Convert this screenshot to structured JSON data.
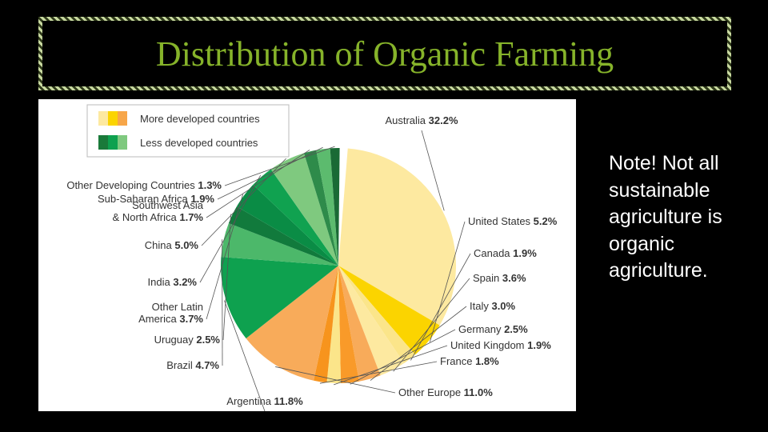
{
  "slide": {
    "title": "Distribution of Organic Farming",
    "note": "Note! Not all sustainable agriculture is organic agriculture."
  },
  "chart_data": {
    "type": "pie",
    "legend": [
      {
        "label": "More developed countries",
        "colors": [
          "#fde9a0",
          "#fbd400",
          "#f7a649"
        ]
      },
      {
        "label": "Less developed countries",
        "colors": [
          "#1a7a3a",
          "#0ea14f",
          "#7fc97f"
        ]
      }
    ],
    "slices": [
      {
        "label": "Australia",
        "value": "32.2%",
        "pct": 32.2,
        "color": "#fde9a0"
      },
      {
        "label": "United States",
        "value": "5.2%",
        "pct": 5.2,
        "color": "#fbd400"
      },
      {
        "label": "Canada",
        "value": "1.9%",
        "pct": 1.9,
        "color": "#fbe58a"
      },
      {
        "label": "Spain",
        "value": "3.6%",
        "pct": 3.6,
        "color": "#fde9a0"
      },
      {
        "label": "Italy",
        "value": "3.0%",
        "pct": 3.0,
        "color": "#f8ab5a"
      },
      {
        "label": "Germany",
        "value": "2.5%",
        "pct": 2.5,
        "color": "#f99a29"
      },
      {
        "label": "United Kingdom",
        "value": "1.9%",
        "pct": 1.9,
        "color": "#fbe58a"
      },
      {
        "label": "France",
        "value": "1.8%",
        "pct": 1.8,
        "color": "#f7941d"
      },
      {
        "label": "Other Europe",
        "value": "11.0%",
        "pct": 11.0,
        "color": "#f8ab5a"
      },
      {
        "label": "Argentina",
        "value": "11.8%",
        "pct": 11.8,
        "color": "#0ea14f"
      },
      {
        "label": "Brazil",
        "value": "4.7%",
        "pct": 4.7,
        "color": "#4cb86a"
      },
      {
        "label": "Uruguay",
        "value": "2.5%",
        "pct": 2.5,
        "color": "#117a3c"
      },
      {
        "label": "Other Latin America",
        "value": "3.7%",
        "pct": 3.7,
        "color": "#0a8c45"
      },
      {
        "label": "India",
        "value": "3.2%",
        "pct": 3.2,
        "color": "#10a250"
      },
      {
        "label": "China",
        "value": "5.0%",
        "pct": 5.0,
        "color": "#7fc97f"
      },
      {
        "label": "Southwest Asia & North Africa",
        "value": "1.7%",
        "pct": 1.7,
        "color": "#2e8b4a"
      },
      {
        "label": "Sub-Saharan Africa",
        "value": "1.9%",
        "pct": 1.9,
        "color": "#5cbb6e"
      },
      {
        "label": "Other Developing Countries",
        "value": "1.3%",
        "pct": 1.3,
        "color": "#1a6a35"
      }
    ]
  }
}
